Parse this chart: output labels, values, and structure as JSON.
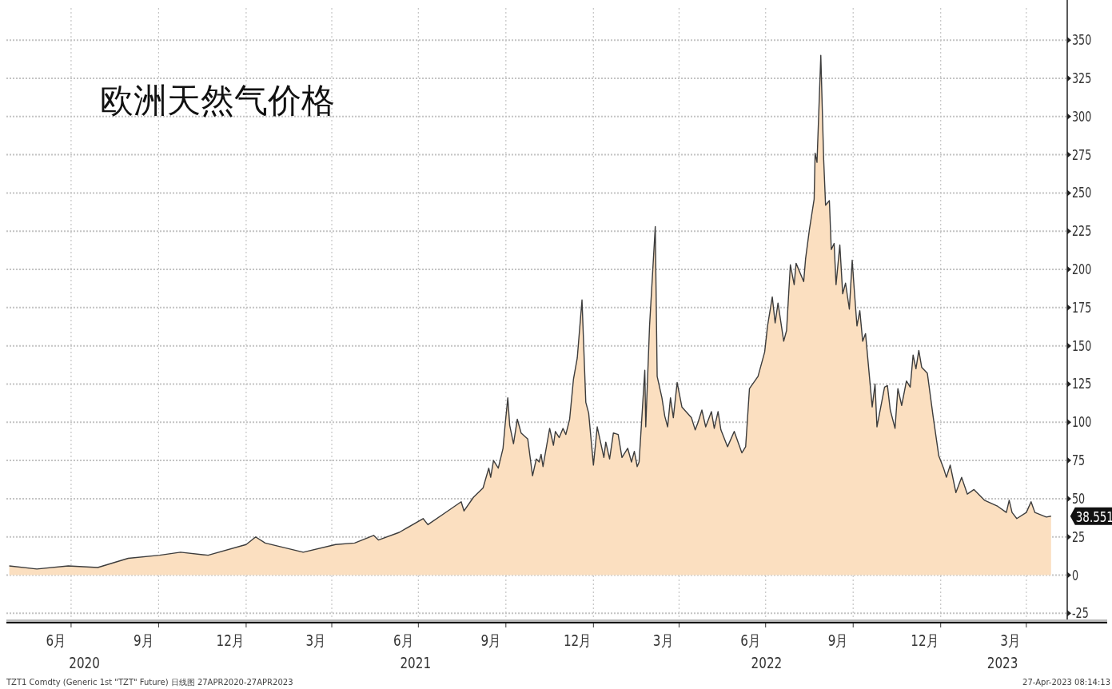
{
  "chart_data": {
    "type": "area",
    "title": "欧洲天然气价格",
    "x": [
      "2020-04-27",
      "2020-05-26",
      "2020-06-28",
      "2020-07-29",
      "2020-08-30",
      "2020-10-02",
      "2020-10-24",
      "2020-11-22",
      "2021-01-01",
      "2021-01-11",
      "2021-01-21",
      "2021-03-02",
      "2021-04-05",
      "2021-04-25",
      "2021-05-15",
      "2021-05-20",
      "2021-06-11",
      "2021-07-06",
      "2021-07-11",
      "2021-08-01",
      "2021-08-15",
      "2021-08-18",
      "2021-08-28",
      "2021-09-07",
      "2021-09-13",
      "2021-09-15",
      "2021-09-18",
      "2021-09-23",
      "2021-09-28",
      "2021-09-30",
      "2021-10-03",
      "2021-10-05",
      "2021-10-09",
      "2021-10-13",
      "2021-10-17",
      "2021-10-24",
      "2021-10-29",
      "2021-11-02",
      "2021-11-05",
      "2021-11-07",
      "2021-11-09",
      "2021-11-16",
      "2021-11-20",
      "2021-11-22",
      "2021-11-26",
      "2021-11-30",
      "2021-12-03",
      "2021-12-07",
      "2021-12-11",
      "2021-12-15",
      "2021-12-20",
      "2021-12-24",
      "2021-12-27",
      "2022-01-01",
      "2022-01-05",
      "2022-01-12",
      "2022-01-14",
      "2022-01-18",
      "2022-01-22",
      "2022-01-27",
      "2022-01-31",
      "2022-02-06",
      "2022-02-10",
      "2022-02-13",
      "2022-02-16",
      "2022-02-18",
      "2022-02-24",
      "2022-02-25",
      "2022-03-01",
      "2022-03-07",
      "2022-03-09",
      "2022-03-14",
      "2022-03-17",
      "2022-03-20",
      "2022-03-23",
      "2022-03-26",
      "2022-03-30",
      "2022-04-04",
      "2022-04-14",
      "2022-04-18",
      "2022-04-21",
      "2022-04-25",
      "2022-04-29",
      "2022-05-05",
      "2022-05-08",
      "2022-05-12",
      "2022-05-15",
      "2022-05-22",
      "2022-05-29",
      "2022-06-06",
      "2022-06-10",
      "2022-06-14",
      "2022-06-23",
      "2022-06-30",
      "2022-07-03",
      "2022-07-08",
      "2022-07-11",
      "2022-07-14",
      "2022-07-20",
      "2022-07-23",
      "2022-07-27",
      "2022-07-31",
      "2022-08-02",
      "2022-08-10",
      "2022-08-12",
      "2022-08-16",
      "2022-08-21",
      "2022-08-22",
      "2022-08-24",
      "2022-08-28",
      "2022-08-31",
      "2022-09-02",
      "2022-09-06",
      "2022-09-08",
      "2022-09-11",
      "2022-09-13",
      "2022-09-17",
      "2022-09-20",
      "2022-09-23",
      "2022-09-27",
      "2022-09-30",
      "2022-10-02",
      "2022-10-05",
      "2022-10-08",
      "2022-10-11",
      "2022-10-14",
      "2022-10-21",
      "2022-10-24",
      "2022-10-26",
      "2022-11-03",
      "2022-11-06",
      "2022-11-09",
      "2022-11-14",
      "2022-11-17",
      "2022-11-21",
      "2022-11-26",
      "2022-11-30",
      "2022-12-03",
      "2022-12-06",
      "2022-12-09",
      "2022-12-12",
      "2022-12-18",
      "2022-12-24",
      "2022-12-30",
      "2023-01-04",
      "2023-01-07",
      "2023-01-11",
      "2023-01-17",
      "2023-01-23",
      "2023-01-29",
      "2023-02-05",
      "2023-02-16",
      "2023-03-02",
      "2023-03-11",
      "2023-03-14",
      "2023-03-17",
      "2023-03-22",
      "2023-04-01",
      "2023-04-06",
      "2023-04-10",
      "2023-04-22",
      "2023-04-27"
    ],
    "values": [
      6,
      4,
      6,
      5,
      11,
      13,
      15,
      13,
      20,
      25,
      21,
      15,
      20,
      21,
      26,
      23,
      28,
      37,
      33,
      42,
      48,
      42,
      51,
      57,
      70,
      64,
      75,
      70,
      83,
      97,
      116,
      98,
      86,
      102,
      93,
      89,
      65,
      76,
      74,
      79,
      71,
      96,
      85,
      94,
      90,
      96,
      92,
      102,
      128,
      142,
      180,
      113,
      106,
      72,
      97,
      77,
      87,
      76,
      93,
      92,
      77,
      83,
      74,
      81,
      71,
      74,
      134,
      97,
      163,
      228,
      130,
      116,
      104,
      97,
      116,
      103,
      126,
      110,
      103,
      95,
      100,
      108,
      97,
      107,
      96,
      107,
      95,
      84,
      94,
      80,
      84,
      122,
      130,
      146,
      163,
      182,
      165,
      178,
      153,
      160,
      203,
      190,
      204,
      192,
      207,
      226,
      246,
      276,
      270,
      340,
      272,
      242,
      245,
      213,
      217,
      190,
      216,
      184,
      191,
      174,
      206,
      188,
      163,
      173,
      153,
      158,
      110,
      125,
      97,
      123,
      124,
      108,
      96,
      122,
      111,
      127,
      123,
      144,
      135,
      147,
      136,
      132,
      104,
      78,
      70,
      64,
      72,
      54,
      64,
      53,
      56,
      49,
      45,
      41,
      49,
      41,
      37,
      41,
      48,
      41,
      38,
      38.551
    ],
    "color": "#fbdfc0",
    "xlim": [
      "2020-04-24",
      "2023-05-14"
    ],
    "ylim": [
      -29,
      371
    ],
    "yticks": [
      -25,
      0,
      25,
      50,
      75,
      100,
      125,
      150,
      175,
      200,
      225,
      250,
      275,
      300,
      325,
      350
    ],
    "xticks": [
      {
        "value": "2020-06-15",
        "label": "6月"
      },
      {
        "value": "2020-09-15",
        "label": "9月"
      },
      {
        "value": "2020-12-15",
        "label": "12月"
      },
      {
        "value": "2021-03-15",
        "label": "3月"
      },
      {
        "value": "2021-06-15",
        "label": "6月"
      },
      {
        "value": "2021-09-15",
        "label": "9月"
      },
      {
        "value": "2021-12-15",
        "label": "12月"
      },
      {
        "value": "2022-03-15",
        "label": "3月"
      },
      {
        "value": "2022-06-15",
        "label": "6月"
      },
      {
        "value": "2022-09-15",
        "label": "9月"
      },
      {
        "value": "2022-12-15",
        "label": "12月"
      },
      {
        "value": "2023-03-15",
        "label": "3月"
      },
      {
        "value": "2020-07-01",
        "label": null
      },
      {
        "value": "2020-10-01",
        "label": null
      },
      {
        "value": "2021-01-01",
        "label": null
      },
      {
        "value": "2021-04-01",
        "label": null
      },
      {
        "value": "2021-07-01",
        "label": null
      },
      {
        "value": "2021-10-01",
        "label": null
      },
      {
        "value": "2022-01-01",
        "label": null
      },
      {
        "value": "2022-04-01",
        "label": null
      },
      {
        "value": "2022-07-01",
        "label": null
      },
      {
        "value": "2022-10-01",
        "label": null
      },
      {
        "value": "2023-01-01",
        "label": null
      },
      {
        "value": "2023-04-01",
        "label": null
      }
    ],
    "x2lim": [
      "2020-04-24",
      "2023-05-14"
    ],
    "x2ticks": [
      {
        "value": "2020-07-15",
        "label": "2020"
      },
      {
        "value": "2021-06-28",
        "label": "2021"
      },
      {
        "value": "2022-07-02",
        "label": "2022"
      },
      {
        "value": "2023-03-07",
        "label": "2023"
      }
    ],
    "grid": true,
    "annotations": [
      {
        "text": "38.551",
        "x": "2023-04-27",
        "y": 38.551
      },
      "TZT1 Comdty (Generic 1st \"TZT\" Future)  日线图 27APR2020-27APR2023",
      "27-Apr-2023 08:14:13"
    ]
  }
}
